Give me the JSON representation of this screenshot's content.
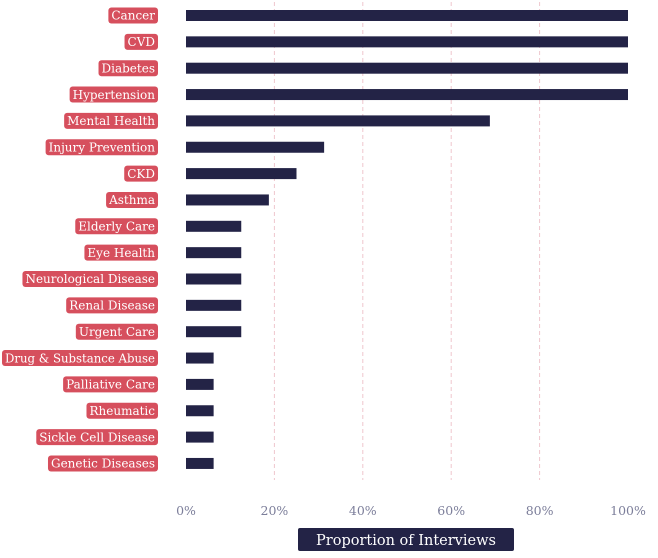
{
  "chart_data": {
    "type": "bar",
    "orientation": "horizontal",
    "categories": [
      "Cancer",
      "CVD",
      "Diabetes",
      "Hypertension",
      "Mental Health",
      "Injury Prevention",
      "CKD",
      "Asthma",
      "Elderly Care",
      "Eye Health",
      "Neurological Disease",
      "Renal Disease",
      "Urgent Care",
      "Drug & Substance Abuse",
      "Palliative Care",
      "Rheumatic",
      "Sickle Cell Disease",
      "Genetic Diseases"
    ],
    "values": [
      100,
      100,
      100,
      100,
      68.75,
      31.25,
      25,
      18.75,
      12.5,
      12.5,
      12.5,
      12.5,
      12.5,
      6.25,
      6.25,
      6.25,
      6.25,
      6.25
    ],
    "xlim": [
      0,
      100
    ],
    "xticks": [
      "0%",
      "20%",
      "40%",
      "60%",
      "80%",
      "100%"
    ],
    "xlabel": "Proportion of Interviews",
    "ylabel": "",
    "title": "",
    "grid": "vertical dashed",
    "colors": {
      "bar": "#232346",
      "label_bg": "#d64f5d",
      "grid": "#efc6cd",
      "tick": "#7c7e9a"
    }
  }
}
